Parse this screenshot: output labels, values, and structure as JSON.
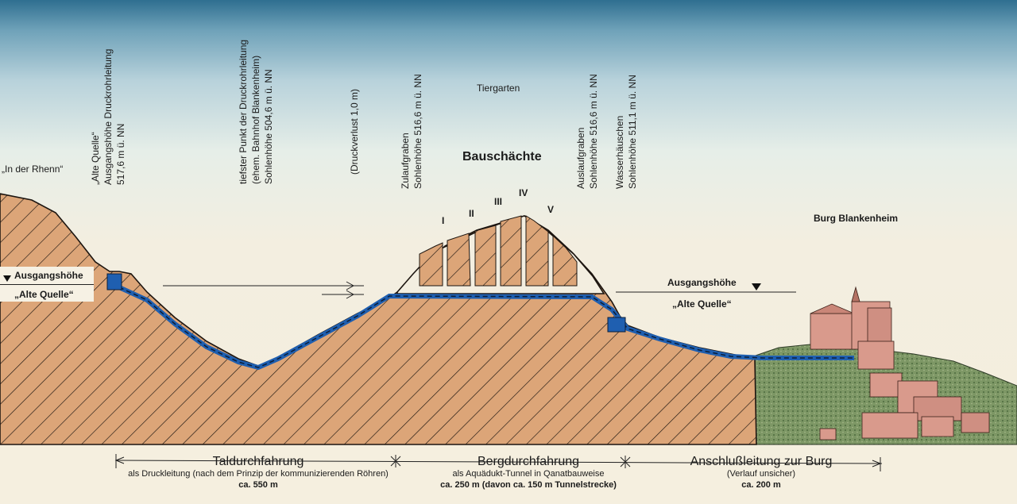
{
  "labels": {
    "in_der_rhenn": "„In der Rhenn“",
    "alte_quelle_vertical": [
      "„Alte Quelle“",
      "Ausgangshöhe Druckrohrleitung",
      "517,6 m ü. NN"
    ],
    "tiefster_punkt": [
      "tiefster Punkt der Druckrohrleitung",
      "(ehem. Bahnhof Blankenheim)",
      "Sohlenhöhe 504,6 m ü. NN"
    ],
    "druckverlust": [
      "(Druckverlust 1,0 m)"
    ],
    "zulaufgraben": [
      "Zulaufgraben",
      "Sohlenhöhe 516,6 m ü. NN"
    ],
    "tiergarten": "Tiergarten",
    "bauschaechte": "Bauschächte",
    "shafts": [
      "I",
      "II",
      "III",
      "IV",
      "V"
    ],
    "auslaufgraben": [
      "Auslaufgraben",
      "Sohlenhöhe 516,6 m ü. NN"
    ],
    "wasserhaeuschen": [
      "Wasserhäuschen",
      "Sohlenhöhe 511,1 m ü. NN"
    ],
    "burg": "Burg Blankenheim",
    "left_ausgangshoehe": "Ausgangshöhe",
    "left_alte_quelle": "„Alte Quelle“",
    "right_ausgangshoehe": "Ausgangshöhe",
    "right_alte_quelle": "„Alte Quelle“"
  },
  "sections": [
    {
      "title": "Taldurchfahrung",
      "sub": "als Druckleitung (nach dem Prinzip der kommunizierenden Röhren)",
      "dist": "ca. 550 m"
    },
    {
      "title": "Bergdurchfahrung",
      "sub": "als Aquädukt-Tunnel in Qanatbauweise",
      "dist": "ca. 250 m (davon ca. 150 m Tunnelstrecke)"
    },
    {
      "title": "Anschlußleitung zur Burg",
      "sub": "(Verlauf unsicher)",
      "dist": "ca. 200 m"
    }
  ],
  "colors": {
    "terrain": "#dca578",
    "hatch": "#1c1510",
    "pipe": "#1f5fb0",
    "vegetation": "#6f8a5a",
    "castle": "#d99a8c"
  }
}
